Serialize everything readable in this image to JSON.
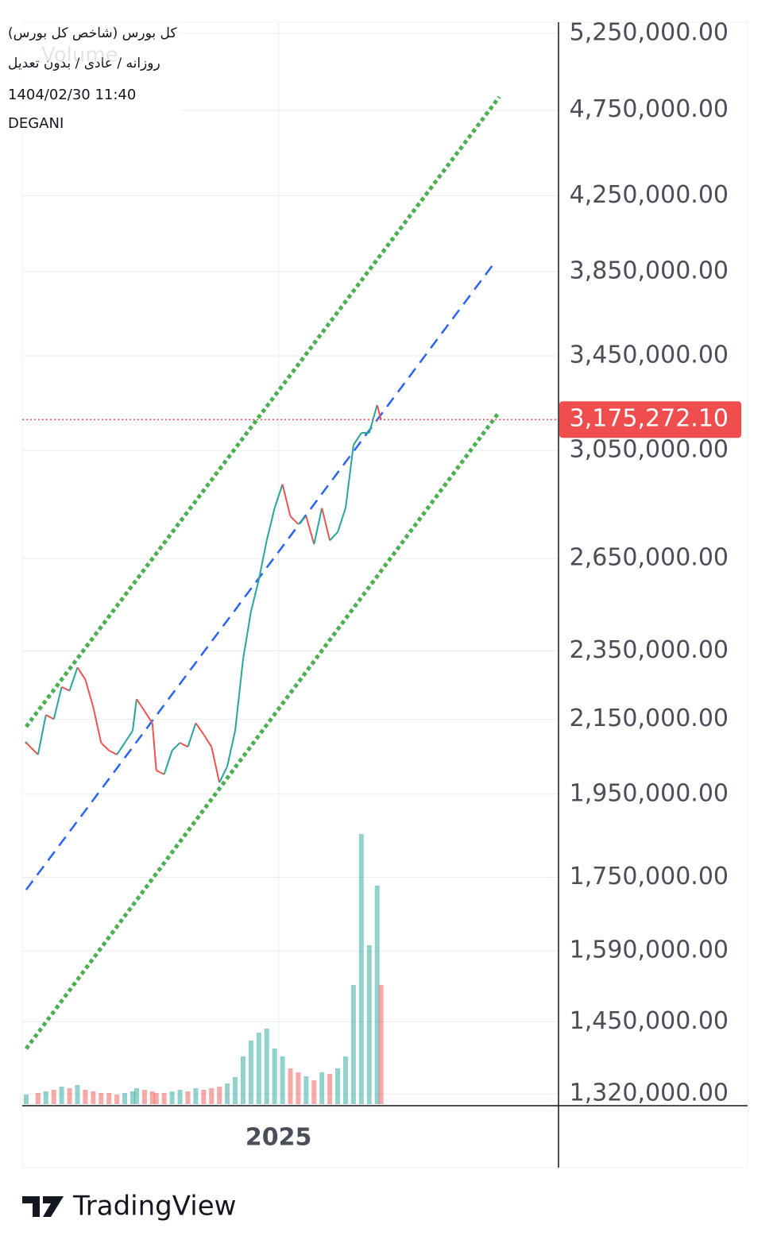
{
  "chart_data": {
    "type": "line",
    "header": [
      "کل بورس (شاخص کل بورس)",
      "روزانه / عادی / بدون تعدیل",
      "1404/02/30 11:40",
      "DEGANI"
    ],
    "watermark": "Volume",
    "log_scale": true,
    "grid": true,
    "x": [
      6,
      9,
      11,
      13,
      15,
      17,
      19,
      21,
      23,
      25,
      27,
      29,
      31,
      33,
      34,
      36,
      38,
      39,
      41,
      43,
      45,
      47,
      49,
      51,
      53,
      55,
      57,
      59,
      61,
      63,
      65,
      67,
      69,
      71,
      73,
      75,
      77,
      79,
      81,
      83,
      85,
      87,
      89,
      91,
      93,
      95,
      96
    ],
    "xlim": [
      5,
      141
    ],
    "xticks": [
      {
        "value": 70,
        "label": "2025"
      }
    ],
    "ylim": [
      1300000,
      5326000
    ],
    "yticks": [
      {
        "value": 5250000,
        "label": "5,250,000.00"
      },
      {
        "value": 4750000,
        "label": "4,750,000.00"
      },
      {
        "value": 4250000,
        "label": "4,250,000.00"
      },
      {
        "value": 3850000,
        "label": "3,850,000.00"
      },
      {
        "value": 3450000,
        "label": "3,450,000.00"
      },
      {
        "value": 3050000,
        "label": "3,050,000.00"
      },
      {
        "value": 2650000,
        "label": "2,650,000.00"
      },
      {
        "value": 2350000,
        "label": "2,350,000.00"
      },
      {
        "value": 2150000,
        "label": "2,150,000.00"
      },
      {
        "value": 1950000,
        "label": "1,950,000.00"
      },
      {
        "value": 1750000,
        "label": "1,750,000.00"
      },
      {
        "value": 1590000,
        "label": "1,590,000.00"
      },
      {
        "value": 1450000,
        "label": "1,450,000.00"
      },
      {
        "value": 1320000,
        "label": "1,320,000.00"
      }
    ],
    "series": [
      {
        "color_up": "#26a69a",
        "color_down": "#ef5350",
        "values": [
          2085000,
          2053000,
          2162000,
          2150000,
          2242000,
          2231000,
          2300000,
          2264000,
          2184000,
          2085000,
          2064000,
          2053000,
          2085000,
          2118000,
          2207000,
          2173000,
          2139000,
          2011000,
          2001000,
          2064000,
          2085000,
          2074000,
          2139000,
          2108000,
          2074000,
          1980000,
          2022000,
          2118000,
          2324000,
          2473000,
          2578000,
          2713000,
          2830000,
          2919000,
          2800000,
          2771000,
          2800000,
          2700000,
          2830000,
          2713000,
          2743000,
          2830000,
          3072000,
          3121000,
          3121000,
          3236000,
          3175272.1
        ]
      }
    ],
    "volume": {
      "lim": [
        0,
        400
      ],
      "values": [
        12,
        14,
        16,
        18,
        22,
        20,
        24,
        18,
        16,
        14,
        14,
        12,
        14,
        16,
        20,
        18,
        16,
        14,
        14,
        16,
        18,
        16,
        20,
        18,
        20,
        22,
        26,
        34,
        60,
        80,
        90,
        95,
        70,
        60,
        45,
        40,
        35,
        30,
        40,
        38,
        45,
        60,
        150,
        340,
        200,
        275,
        150
      ]
    },
    "trend_lines": [
      {
        "color": "#4caf50",
        "x": [
          6,
          126
        ],
        "values": [
          2129000,
          4833000
        ]
      },
      {
        "color": "#2962ff",
        "x": [
          6,
          124.4
        ],
        "values": [
          1722000,
          3885000
        ]
      },
      {
        "color": "#4caf50",
        "x": [
          6,
          126
        ],
        "values": [
          1400000,
          3208000
        ]
      }
    ],
    "last_price": {
      "value": 3175272.1,
      "label": "3,175,272.10",
      "color": "#f04e4e"
    },
    "footer": "TradingView"
  }
}
